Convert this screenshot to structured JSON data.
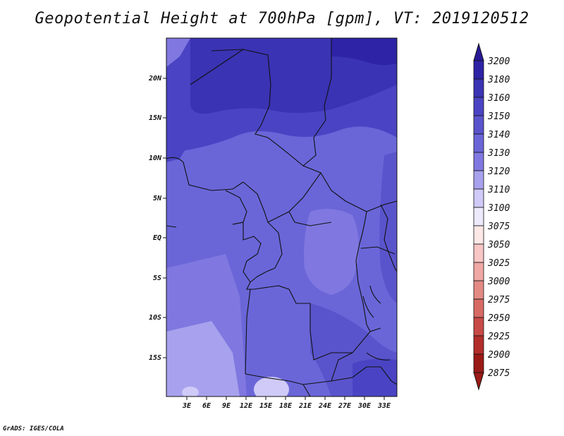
{
  "title": "Geopotential Height at 700hPa [gpm], VT: 2019120512",
  "credit": "GrADS: IGES/COLA",
  "map": {
    "lon_ticks": [
      "3E",
      "6E",
      "9E",
      "12E",
      "15E",
      "18E",
      "21E",
      "24E",
      "27E",
      "30E",
      "33E"
    ],
    "lat_ticks": [
      "20N",
      "15N",
      "10N",
      "5N",
      "EQ",
      "5S",
      "10S",
      "15S"
    ]
  },
  "colorbar": {
    "levels": [
      "3200",
      "3180",
      "3160",
      "3150",
      "3140",
      "3130",
      "3120",
      "3110",
      "3100",
      "3075",
      "3050",
      "3025",
      "3000",
      "2975",
      "2950",
      "2925",
      "2900",
      "2875"
    ],
    "colors": [
      "#281a96",
      "#2e23a6",
      "#3a33b4",
      "#4a44c4",
      "#5a54cc",
      "#6a66d8",
      "#8078e0",
      "#a8a2ee",
      "#cfcaf7",
      "#eeeafd",
      "#fde8e8",
      "#f8c6c4",
      "#f0a8a4",
      "#e48a84",
      "#d86a64",
      "#c84a46",
      "#b22e2a",
      "#9a1a16"
    ]
  }
}
